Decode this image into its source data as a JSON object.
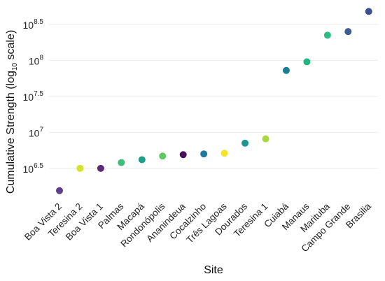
{
  "chart_data": {
    "type": "scatter",
    "xlabel": "Site",
    "ylabel_prefix": "Cumulative Strength (log",
    "ylabel_subscript": "10",
    "ylabel_suffix": " scale)",
    "y_scale": "log10",
    "y_exponent_range": [
      6.1,
      8.8
    ],
    "y_tick_base": "10",
    "y_ticks": [
      {
        "exponent": 6.5,
        "label": "6.5"
      },
      {
        "exponent": 7.0,
        "label": "7"
      },
      {
        "exponent": 7.5,
        "label": "7.5"
      },
      {
        "exponent": 8.0,
        "label": "8"
      },
      {
        "exponent": 8.5,
        "label": "8.5"
      }
    ],
    "grid": true,
    "points": [
      {
        "site": "Boa Vista 2",
        "log10_value": 6.19,
        "color": "#5b3f8c"
      },
      {
        "site": "Teresina 2",
        "log10_value": 6.5,
        "color": "#d4e22f"
      },
      {
        "site": "Boa Vista 1",
        "log10_value": 6.5,
        "color": "#5d2a78"
      },
      {
        "site": "Palmas",
        "log10_value": 6.58,
        "color": "#3bbf76"
      },
      {
        "site": "Macapá",
        "log10_value": 6.62,
        "color": "#1f9e8a"
      },
      {
        "site": "Rondonópolis",
        "log10_value": 6.67,
        "color": "#5ec962"
      },
      {
        "site": "Ananindeua",
        "log10_value": 6.69,
        "color": "#4a0f5a"
      },
      {
        "site": "Cocalzinho",
        "log10_value": 6.7,
        "color": "#207a9b"
      },
      {
        "site": "Três Lagoas",
        "log10_value": 6.71,
        "color": "#f2e32a"
      },
      {
        "site": "Dourados",
        "log10_value": 6.85,
        "color": "#1b9591"
      },
      {
        "site": "Teresina 1",
        "log10_value": 6.91,
        "color": "#a8d93a"
      },
      {
        "site": "Cuiabá",
        "log10_value": 7.86,
        "color": "#1a7d94"
      },
      {
        "site": "Manaus",
        "log10_value": 7.98,
        "color": "#24b582"
      },
      {
        "site": "Marituba",
        "log10_value": 8.35,
        "color": "#2bbd84"
      },
      {
        "site": "Campo Grande",
        "log10_value": 8.4,
        "color": "#3a5d94"
      },
      {
        "site": "Brasilia",
        "log10_value": 8.68,
        "color": "#3f4e8c"
      }
    ]
  }
}
